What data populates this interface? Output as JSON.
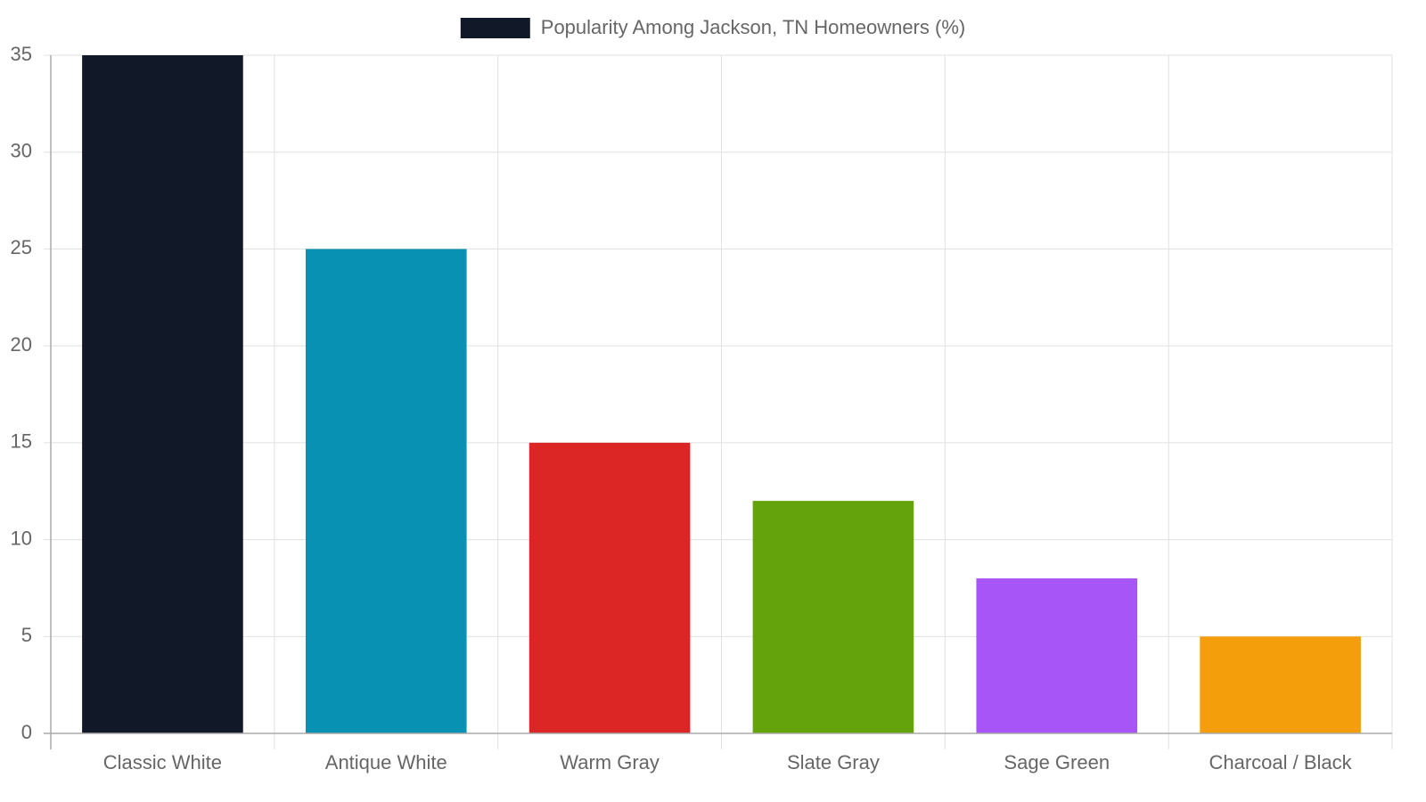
{
  "chart_data": {
    "type": "bar",
    "categories": [
      "Classic White",
      "Antique White",
      "Warm Gray",
      "Slate Gray",
      "Sage Green",
      "Charcoal / Black"
    ],
    "series": [
      {
        "name": "Popularity Among Jackson, TN Homeowners (%)",
        "colors": [
          "#111827",
          "#0891b2",
          "#dc2626",
          "#65a30d",
          "#a855f7",
          "#f59e0b"
        ],
        "values": [
          35,
          25,
          15,
          12,
          8,
          5
        ]
      }
    ],
    "ylim": [
      0,
      35
    ],
    "yticks": [
      0,
      5,
      10,
      15,
      20,
      25,
      30,
      35
    ],
    "grid": true,
    "legend": "top"
  }
}
